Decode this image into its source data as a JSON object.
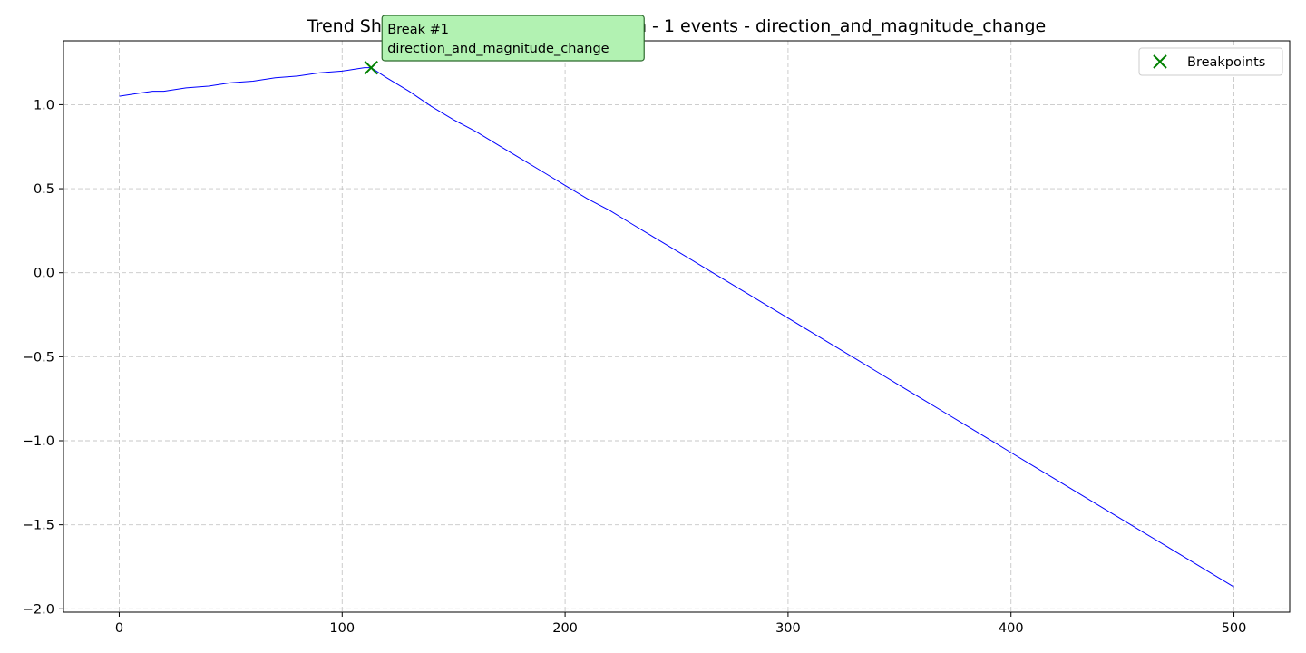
{
  "chart_data": {
    "type": "line",
    "title": "Trend Shift (single) - Beginning location - 1 events - direction_and_magnitude_change",
    "xlabel": "",
    "ylabel": "",
    "xlim": [
      -25,
      525
    ],
    "ylim": [
      -2.02,
      1.38
    ],
    "x_ticks": [
      0,
      100,
      200,
      300,
      400,
      500
    ],
    "x_tick_labels": [
      "0",
      "100",
      "200",
      "300",
      "400",
      "500"
    ],
    "y_ticks": [
      1.0,
      0.5,
      0.0,
      -0.5,
      -1.0,
      -1.5,
      -2.0
    ],
    "y_tick_labels": [
      "1.0",
      "0.5",
      "0.0",
      "−0.5",
      "−1.0",
      "−1.5",
      "−2.0"
    ],
    "grid": true,
    "legend_position": "top-right",
    "series": [
      {
        "kind": "line",
        "color": "#0000ff",
        "x": [
          0,
          5,
          10,
          15,
          20,
          25,
          30,
          40,
          50,
          60,
          70,
          80,
          90,
          100,
          105,
          110,
          113,
          120,
          130,
          140,
          150,
          160,
          170,
          180,
          190,
          200,
          210,
          220,
          230,
          240,
          250,
          260,
          270,
          280,
          290,
          300,
          310,
          320,
          330,
          340,
          350,
          360,
          370,
          380,
          390,
          400,
          410,
          420,
          430,
          440,
          450,
          460,
          470,
          480,
          490,
          500
        ],
        "values": [
          1.05,
          1.06,
          1.07,
          1.08,
          1.08,
          1.09,
          1.1,
          1.11,
          1.13,
          1.14,
          1.16,
          1.17,
          1.19,
          1.2,
          1.21,
          1.22,
          1.22,
          1.16,
          1.08,
          0.99,
          0.91,
          0.84,
          0.76,
          0.68,
          0.6,
          0.52,
          0.44,
          0.37,
          0.29,
          0.21,
          0.13,
          0.05,
          -0.03,
          -0.11,
          -0.19,
          -0.27,
          -0.35,
          -0.43,
          -0.51,
          -0.59,
          -0.67,
          -0.75,
          -0.83,
          -0.91,
          -0.99,
          -1.07,
          -1.15,
          -1.23,
          -1.31,
          -1.39,
          -1.47,
          -1.55,
          -1.63,
          -1.71,
          -1.79,
          -1.87
        ]
      },
      {
        "kind": "scatter",
        "name": "Breakpoints",
        "marker": "x",
        "color": "#008000",
        "x": [
          113
        ],
        "values": [
          1.22
        ]
      }
    ],
    "annotations": [
      {
        "text_lines": [
          "Break #1",
          "direction_and_magnitude_change"
        ],
        "x": 113,
        "y": 1.22,
        "box_color": "#b2f2b2",
        "border_color": "#2e6b2e"
      }
    ]
  }
}
